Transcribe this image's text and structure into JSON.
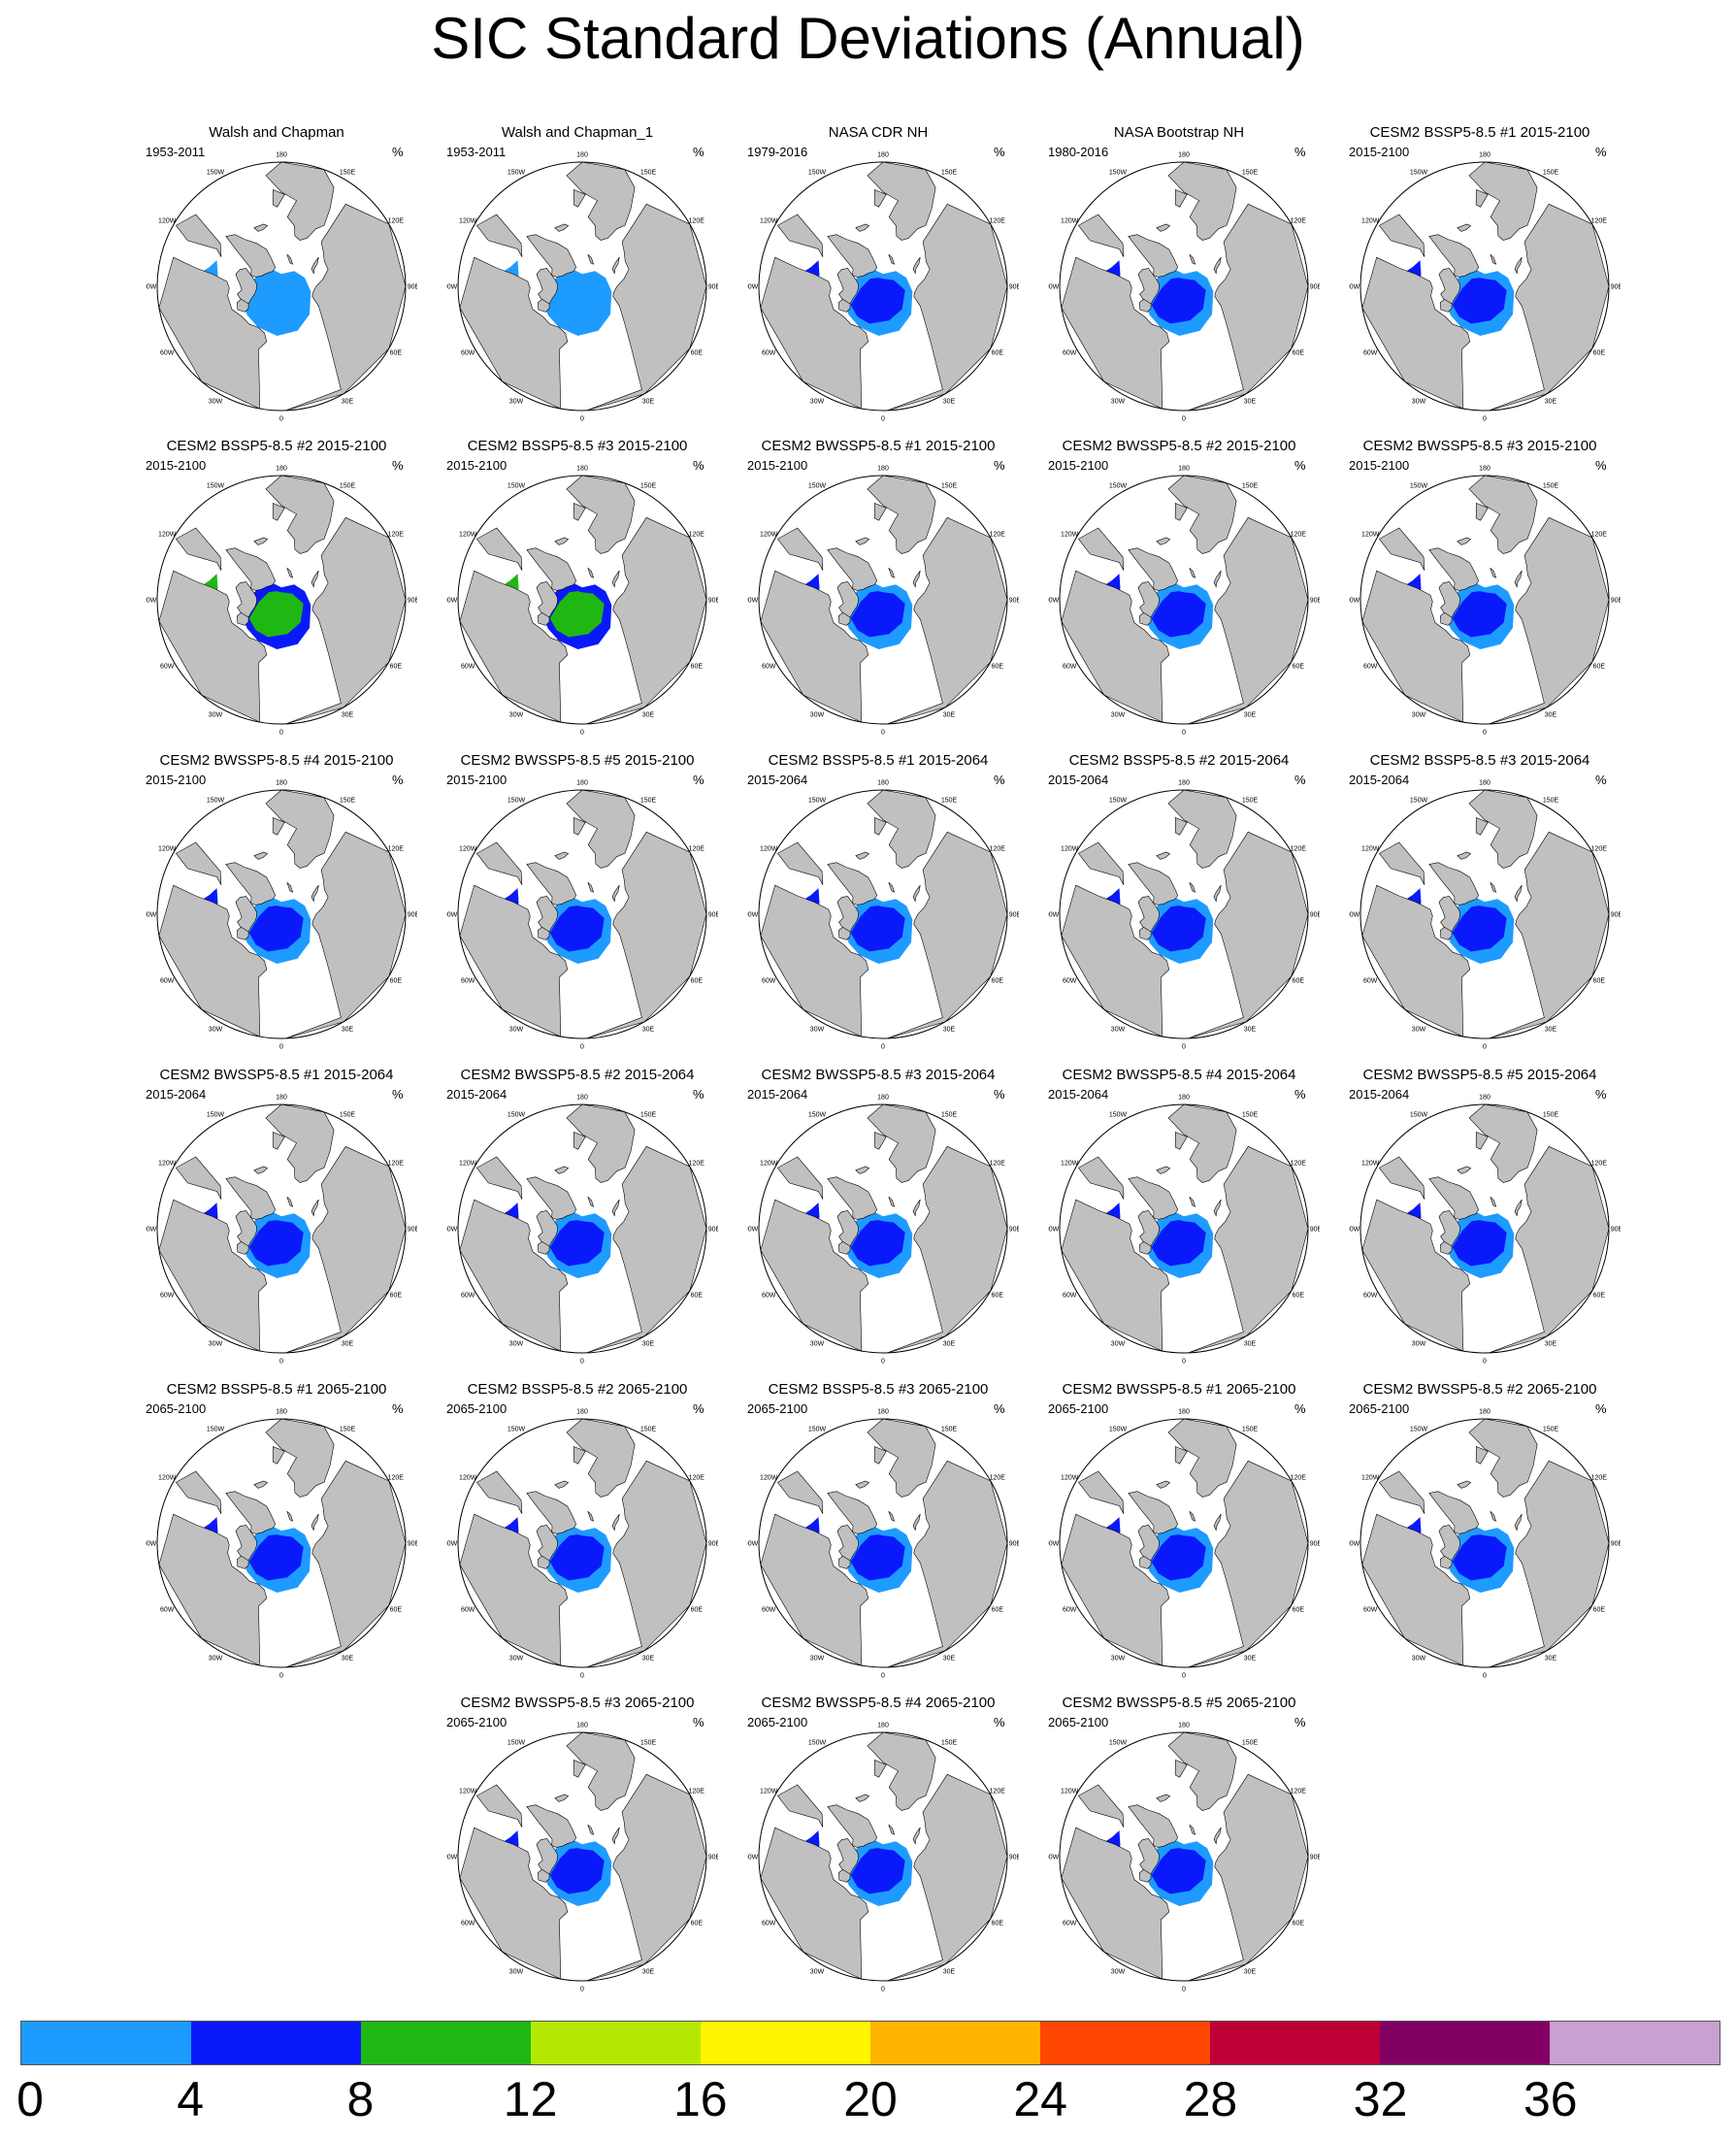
{
  "title": "SIC Standard Deviations (Annual)",
  "unit": "%",
  "lon_labels": [
    "180",
    "150E",
    "120E",
    "90E",
    "60E",
    "30E",
    "0",
    "30W",
    "60W",
    "90W",
    "120W",
    "150W"
  ],
  "colors": {
    "land": "#c0c0c0",
    "ocean": "#ffffff",
    "outline": "#000000"
  },
  "colorbar": {
    "colors": [
      "#1e9bff",
      "#0a19fa",
      "#1fb712",
      "#b4e804",
      "#fff500",
      "#ffb400",
      "#ff4600",
      "#be0036",
      "#820064",
      "#c8a0d2"
    ],
    "labels": [
      "0",
      "4",
      "8",
      "12",
      "16",
      "20",
      "24",
      "28",
      "32",
      "36"
    ]
  },
  "panels": [
    {
      "title": "Walsh and Chapman",
      "period": "1953-2011",
      "sd": 3
    },
    {
      "title": "Walsh and Chapman_1",
      "period": "1953-2011",
      "sd": 3
    },
    {
      "title": "NASA CDR NH",
      "period": "1979-2016",
      "sd": 7
    },
    {
      "title": "NASA Bootstrap NH",
      "period": "1980-2016",
      "sd": 7
    },
    {
      "title": "CESM2 BSSP5-8.5 #1 2015-2100",
      "period": "2015-2100",
      "sd": 7
    },
    {
      "title": "CESM2 BSSP5-8.5 #2 2015-2100",
      "period": "2015-2100",
      "sd": 8
    },
    {
      "title": "CESM2 BSSP5-8.5 #3 2015-2100",
      "period": "2015-2100",
      "sd": 8
    },
    {
      "title": "CESM2 BWSSP5-8.5 #1 2015-2100",
      "period": "2015-2100",
      "sd": 7
    },
    {
      "title": "CESM2 BWSSP5-8.5 #2 2015-2100",
      "period": "2015-2100",
      "sd": 7
    },
    {
      "title": "CESM2 BWSSP5-8.5 #3 2015-2100",
      "period": "2015-2100",
      "sd": 7
    },
    {
      "title": "CESM2 BWSSP5-8.5 #4 2015-2100",
      "period": "2015-2100",
      "sd": 7
    },
    {
      "title": "CESM2 BWSSP5-8.5 #5 2015-2100",
      "period": "2015-2100",
      "sd": 7
    },
    {
      "title": "CESM2 BSSP5-8.5 #1 2015-2064",
      "period": "2015-2064",
      "sd": 6
    },
    {
      "title": "CESM2 BSSP5-8.5 #2 2015-2064",
      "period": "2015-2064",
      "sd": 7
    },
    {
      "title": "CESM2 BSSP5-8.5 #3 2015-2064",
      "period": "2015-2064",
      "sd": 7
    },
    {
      "title": "CESM2 BWSSP5-8.5 #1 2015-2064",
      "period": "2015-2064",
      "sd": 6
    },
    {
      "title": "CESM2 BWSSP5-8.5 #2 2015-2064",
      "period": "2015-2064",
      "sd": 6
    },
    {
      "title": "CESM2 BWSSP5-8.5 #3 2015-2064",
      "period": "2015-2064",
      "sd": 7
    },
    {
      "title": "CESM2 BWSSP5-8.5 #4 2015-2064",
      "period": "2015-2064",
      "sd": 7
    },
    {
      "title": "CESM2 BWSSP5-8.5 #5 2015-2064",
      "period": "2015-2064",
      "sd": 6
    },
    {
      "title": "CESM2 BSSP5-8.5 #1 2065-2100",
      "period": "2065-2100",
      "sd": 6
    },
    {
      "title": "CESM2 BSSP5-8.5 #2 2065-2100",
      "period": "2065-2100",
      "sd": 6
    },
    {
      "title": "CESM2 BSSP5-8.5 #3 2065-2100",
      "period": "2065-2100",
      "sd": 6
    },
    {
      "title": "CESM2 BWSSP5-8.5 #1 2065-2100",
      "period": "2065-2100",
      "sd": 6
    },
    {
      "title": "CESM2 BWSSP5-8.5 #2 2065-2100",
      "period": "2065-2100",
      "sd": 6
    },
    {
      "title": "CESM2 BWSSP5-8.5 #3 2065-2100",
      "period": "2065-2100",
      "sd": 6
    },
    {
      "title": "CESM2 BWSSP5-8.5 #4 2065-2100",
      "period": "2065-2100",
      "sd": 6
    },
    {
      "title": "CESM2 BWSSP5-8.5 #5 2065-2100",
      "period": "2065-2100",
      "sd": 6
    }
  ]
}
